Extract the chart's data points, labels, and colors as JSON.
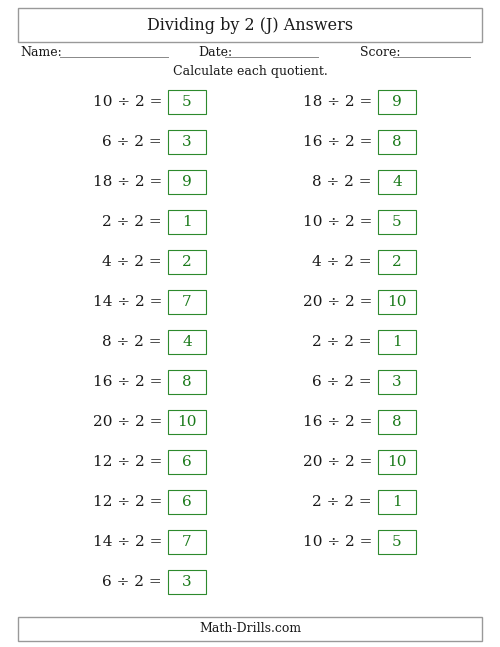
{
  "title": "Dividing by 2 (J) Answers",
  "subtitle": "Calculate each quotient.",
  "footer": "Math-Drills.com",
  "name_label": "Name:",
  "date_label": "Date:",
  "score_label": "Score:",
  "left_column": [
    {
      "problem": "10 ÷ 2 =",
      "answer": "5"
    },
    {
      "problem": "6 ÷ 2 =",
      "answer": "3"
    },
    {
      "problem": "18 ÷ 2 =",
      "answer": "9"
    },
    {
      "problem": "2 ÷ 2 =",
      "answer": "1"
    },
    {
      "problem": "4 ÷ 2 =",
      "answer": "2"
    },
    {
      "problem": "14 ÷ 2 =",
      "answer": "7"
    },
    {
      "problem": "8 ÷ 2 =",
      "answer": "4"
    },
    {
      "problem": "16 ÷ 2 =",
      "answer": "8"
    },
    {
      "problem": "20 ÷ 2 =",
      "answer": "10"
    },
    {
      "problem": "12 ÷ 2 =",
      "answer": "6"
    },
    {
      "problem": "12 ÷ 2 =",
      "answer": "6"
    },
    {
      "problem": "14 ÷ 2 =",
      "answer": "7"
    },
    {
      "problem": "6 ÷ 2 =",
      "answer": "3"
    }
  ],
  "right_column": [
    {
      "problem": "18 ÷ 2 =",
      "answer": "9"
    },
    {
      "problem": "16 ÷ 2 =",
      "answer": "8"
    },
    {
      "problem": "8 ÷ 2 =",
      "answer": "4"
    },
    {
      "problem": "10 ÷ 2 =",
      "answer": "5"
    },
    {
      "problem": "4 ÷ 2 =",
      "answer": "2"
    },
    {
      "problem": "20 ÷ 2 =",
      "answer": "10"
    },
    {
      "problem": "2 ÷ 2 =",
      "answer": "1"
    },
    {
      "problem": "6 ÷ 2 =",
      "answer": "3"
    },
    {
      "problem": "16 ÷ 2 =",
      "answer": "8"
    },
    {
      "problem": "20 ÷ 2 =",
      "answer": "10"
    },
    {
      "problem": "2 ÷ 2 =",
      "answer": "1"
    },
    {
      "problem": "10 ÷ 2 =",
      "answer": "5"
    }
  ],
  "bg_color": "#ffffff",
  "text_color": "#1a1a1a",
  "answer_color": "#1a7a1a",
  "answer_box_edge": "#2d8a2d",
  "title_fontsize": 11.5,
  "problem_fontsize": 11,
  "answer_fontsize": 11,
  "header_fontsize": 9,
  "footer_fontsize": 9,
  "subtitle_fontsize": 9
}
